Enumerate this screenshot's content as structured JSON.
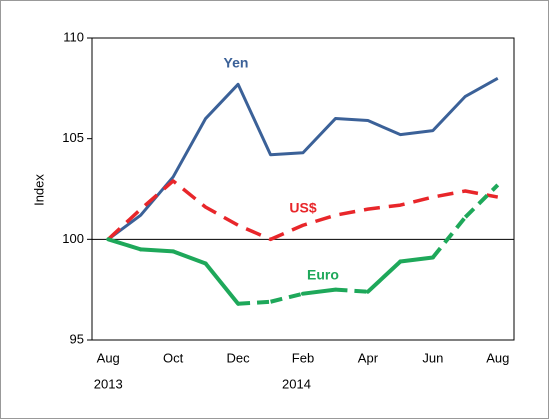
{
  "chart_data": {
    "type": "line",
    "y_label": "Index",
    "categories": [
      "Aug",
      null,
      "Oct",
      null,
      "Dec",
      null,
      "Feb",
      null,
      "Apr",
      null,
      "Jun",
      null,
      "Aug"
    ],
    "year_labels": [
      {
        "label": "2013",
        "at": 0
      },
      {
        "label": "2014",
        "at": 5.8
      }
    ],
    "ylim": [
      95,
      110
    ],
    "yticks": [
      95,
      100,
      105,
      110
    ],
    "x_axis_crosses": 100,
    "series": [
      {
        "name": "Yen",
        "color": "#3b6198",
        "dash": false,
        "values": [
          100,
          101.2,
          103.1,
          106.0,
          107.7,
          104.2,
          104.3,
          106.0,
          105.9,
          105.2,
          105.4,
          107.1,
          108.0
        ]
      },
      {
        "name": "US$",
        "color": "#e8262a",
        "dash": true,
        "values": [
          100,
          101.5,
          102.9,
          101.6,
          100.7,
          100.0,
          100.7,
          101.2,
          101.5,
          101.7,
          102.1,
          102.4,
          102.1
        ]
      },
      {
        "name": "Euro",
        "color": "#1ea85a",
        "segment_dash": [
          false,
          false,
          false,
          false,
          true,
          true,
          false,
          true,
          false,
          false,
          true,
          true
        ],
        "values": [
          100,
          99.5,
          99.4,
          98.8,
          96.8,
          96.9,
          97.3,
          97.5,
          97.4,
          98.9,
          99.1,
          101.1,
          102.7
        ]
      }
    ]
  }
}
